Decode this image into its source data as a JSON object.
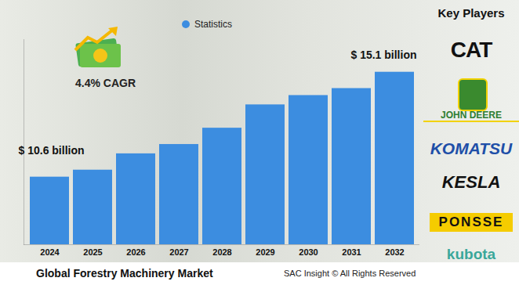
{
  "chart_data": {
    "type": "bar",
    "title": "Global Forestry Machinery Market",
    "source": "SAC Insight © All Rights Reserved",
    "annotations": [
      "4.4% CAGR"
    ],
    "key_players_title": "Key Players",
    "key_players": [
      "CAT",
      "JOHN DEERE",
      "KOMATSU",
      "KESLA",
      "PONSSE",
      "kubota"
    ],
    "categories": [
      "2024",
      "2025",
      "2026",
      "2027",
      "2028",
      "2029",
      "2030",
      "2031",
      "2032"
    ],
    "series": [
      {
        "name": "Statistics",
        "color": "#3c8de0",
        "values": [
          10.6,
          10.9,
          11.6,
          12.0,
          12.7,
          13.7,
          14.1,
          14.4,
          15.1
        ],
        "value_labels": [
          "$ 10.6 billion",
          null,
          null,
          null,
          null,
          null,
          null,
          null,
          "$ 15.1 billion"
        ]
      }
    ],
    "ylim": [
      7.7,
      16.5
    ],
    "yticks": [],
    "tick_labels": "x",
    "grid": false,
    "legend": "top",
    "data_labels": true
  }
}
